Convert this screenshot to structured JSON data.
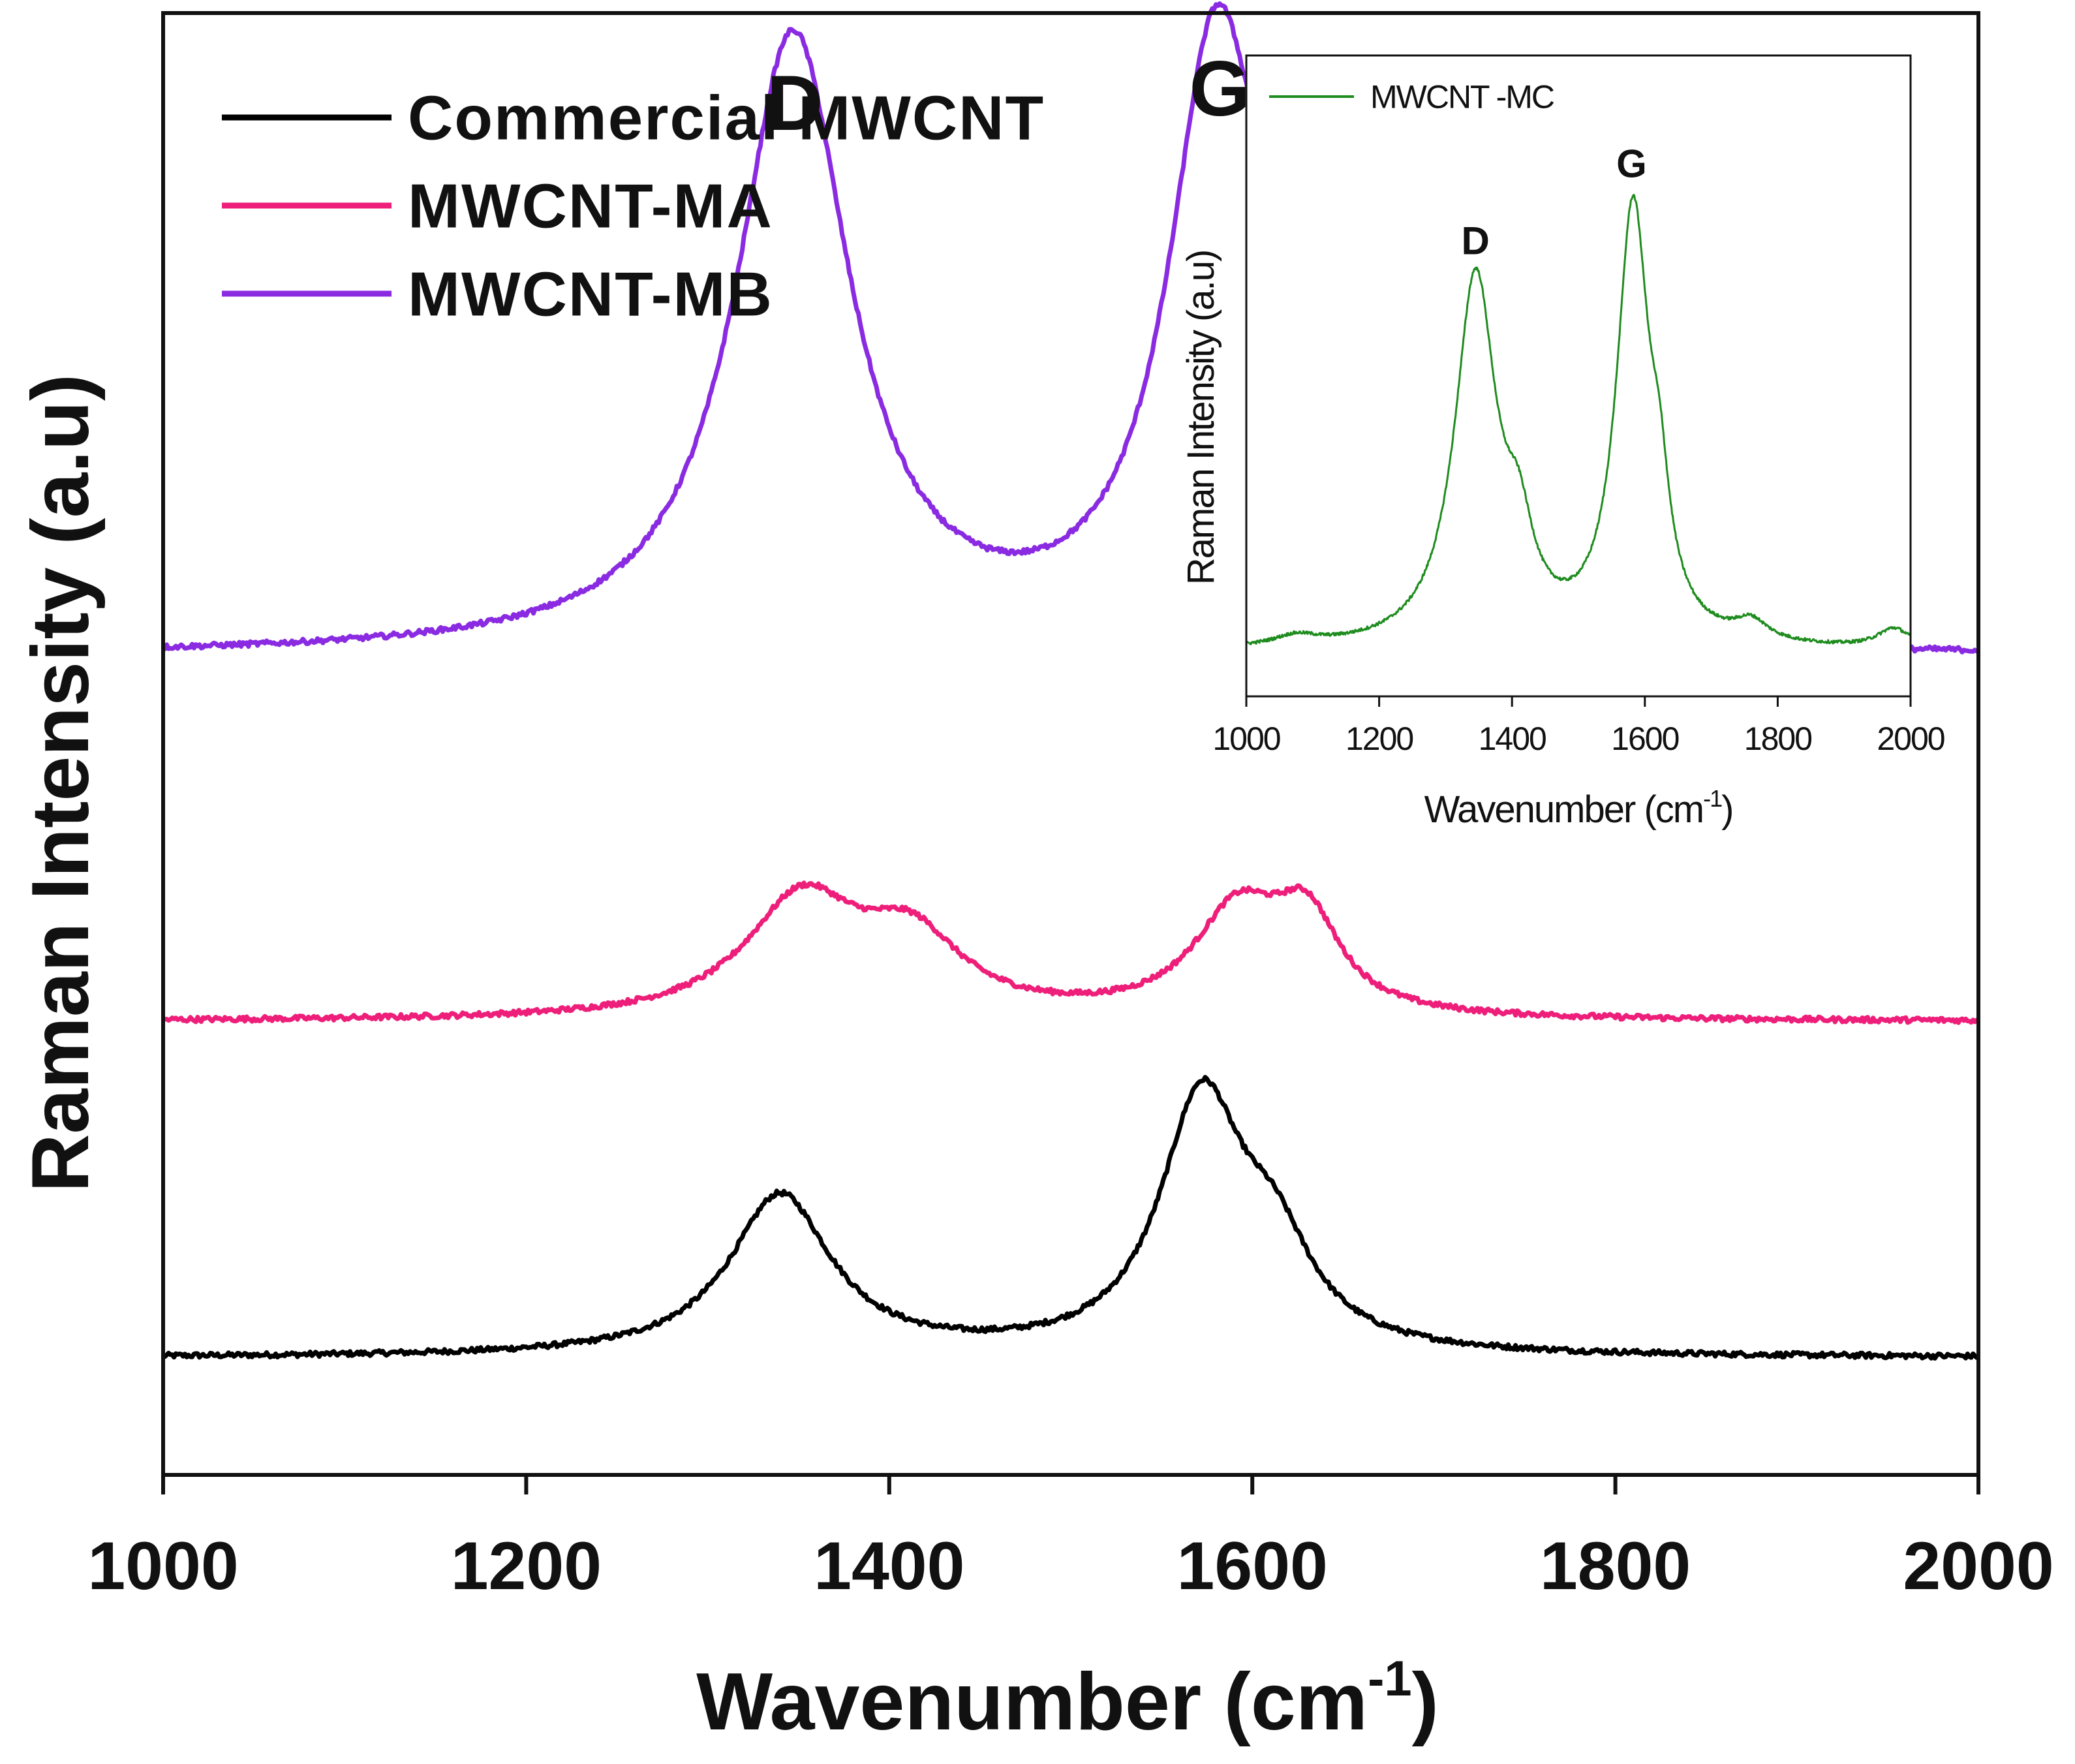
{
  "chart_data": [
    {
      "type": "line",
      "name": "main",
      "title": "",
      "xlabel": "Wavenumber (cm",
      "xlabel_sup": "-1",
      "xlabel_close": ")",
      "ylabel": "Raman Intensity (a.u)",
      "xlim": [
        1000,
        2000
      ],
      "ylim": [
        0,
        100
      ],
      "yticks_shown": false,
      "xticks": [
        1000,
        1200,
        1400,
        1600,
        1800,
        2000
      ],
      "tick_labels": [
        "1000",
        "1200",
        "1400",
        "1600",
        "1800",
        "2000"
      ],
      "legend_position": "top-left",
      "annotations": [
        {
          "text": "D",
          "x": 1348,
          "y": 92
        },
        {
          "text": "G",
          "x": 1582,
          "y": 93
        }
      ],
      "series": [
        {
          "name": "Commercial MWCNT",
          "color": "#000000",
          "baseline": 8,
          "peaks": [
            {
              "center": 1340,
              "height": 11,
              "width": 34
            },
            {
              "center": 1572,
              "height": 17,
              "width": 28
            },
            {
              "center": 1612,
              "height": 6,
              "width": 26
            }
          ]
        },
        {
          "name": "MWCNT-MA",
          "color": "#ee1f7a",
          "baseline": 31,
          "peaks": [
            {
              "center": 1352,
              "height": 8,
              "width": 38
            },
            {
              "center": 1412,
              "height": 5,
              "width": 34
            },
            {
              "center": 1592,
              "height": 7,
              "width": 30
            },
            {
              "center": 1630,
              "height": 6,
              "width": 22
            }
          ]
        },
        {
          "name": "MWCNT-MB",
          "color": "#8a2be2",
          "baseline": 56,
          "peaks": [
            {
              "center": 1347,
              "height": 42,
              "width": 38
            },
            {
              "center": 1580,
              "height": 40,
              "width": 32
            },
            {
              "center": 1625,
              "height": 18,
              "width": 22
            }
          ]
        }
      ]
    },
    {
      "type": "line",
      "name": "inset",
      "title": "",
      "xlabel": "Wavenumber (cm",
      "xlabel_sup": "-1",
      "xlabel_close": ")",
      "ylabel": "Raman Intensity (a.u)",
      "xlim": [
        1000,
        2000
      ],
      "ylim": [
        0,
        100
      ],
      "yticks_shown": false,
      "xticks": [
        1000,
        1200,
        1400,
        1600,
        1800,
        2000
      ],
      "tick_labels": [
        "1000",
        "1200",
        "1400",
        "1600",
        "1800",
        "2000"
      ],
      "legend_position": "top-left",
      "annotations": [
        {
          "text": "D",
          "x": 1345,
          "y": 69
        },
        {
          "text": "G",
          "x": 1580,
          "y": 81
        }
      ],
      "series": [
        {
          "name": "MWCNT -MC",
          "color": "#1e8c1e",
          "baseline": 7,
          "peaks": [
            {
              "center": 1075,
              "height": 1.5,
              "width": 40
            },
            {
              "center": 1345,
              "height": 57,
              "width": 38
            },
            {
              "center": 1410,
              "height": 12,
              "width": 26
            },
            {
              "center": 1582,
              "height": 67,
              "width": 30
            },
            {
              "center": 1622,
              "height": 14,
              "width": 18
            },
            {
              "center": 1760,
              "height": 3,
              "width": 30
            },
            {
              "center": 1975,
              "height": 3,
              "width": 30
            }
          ]
        }
      ]
    }
  ]
}
